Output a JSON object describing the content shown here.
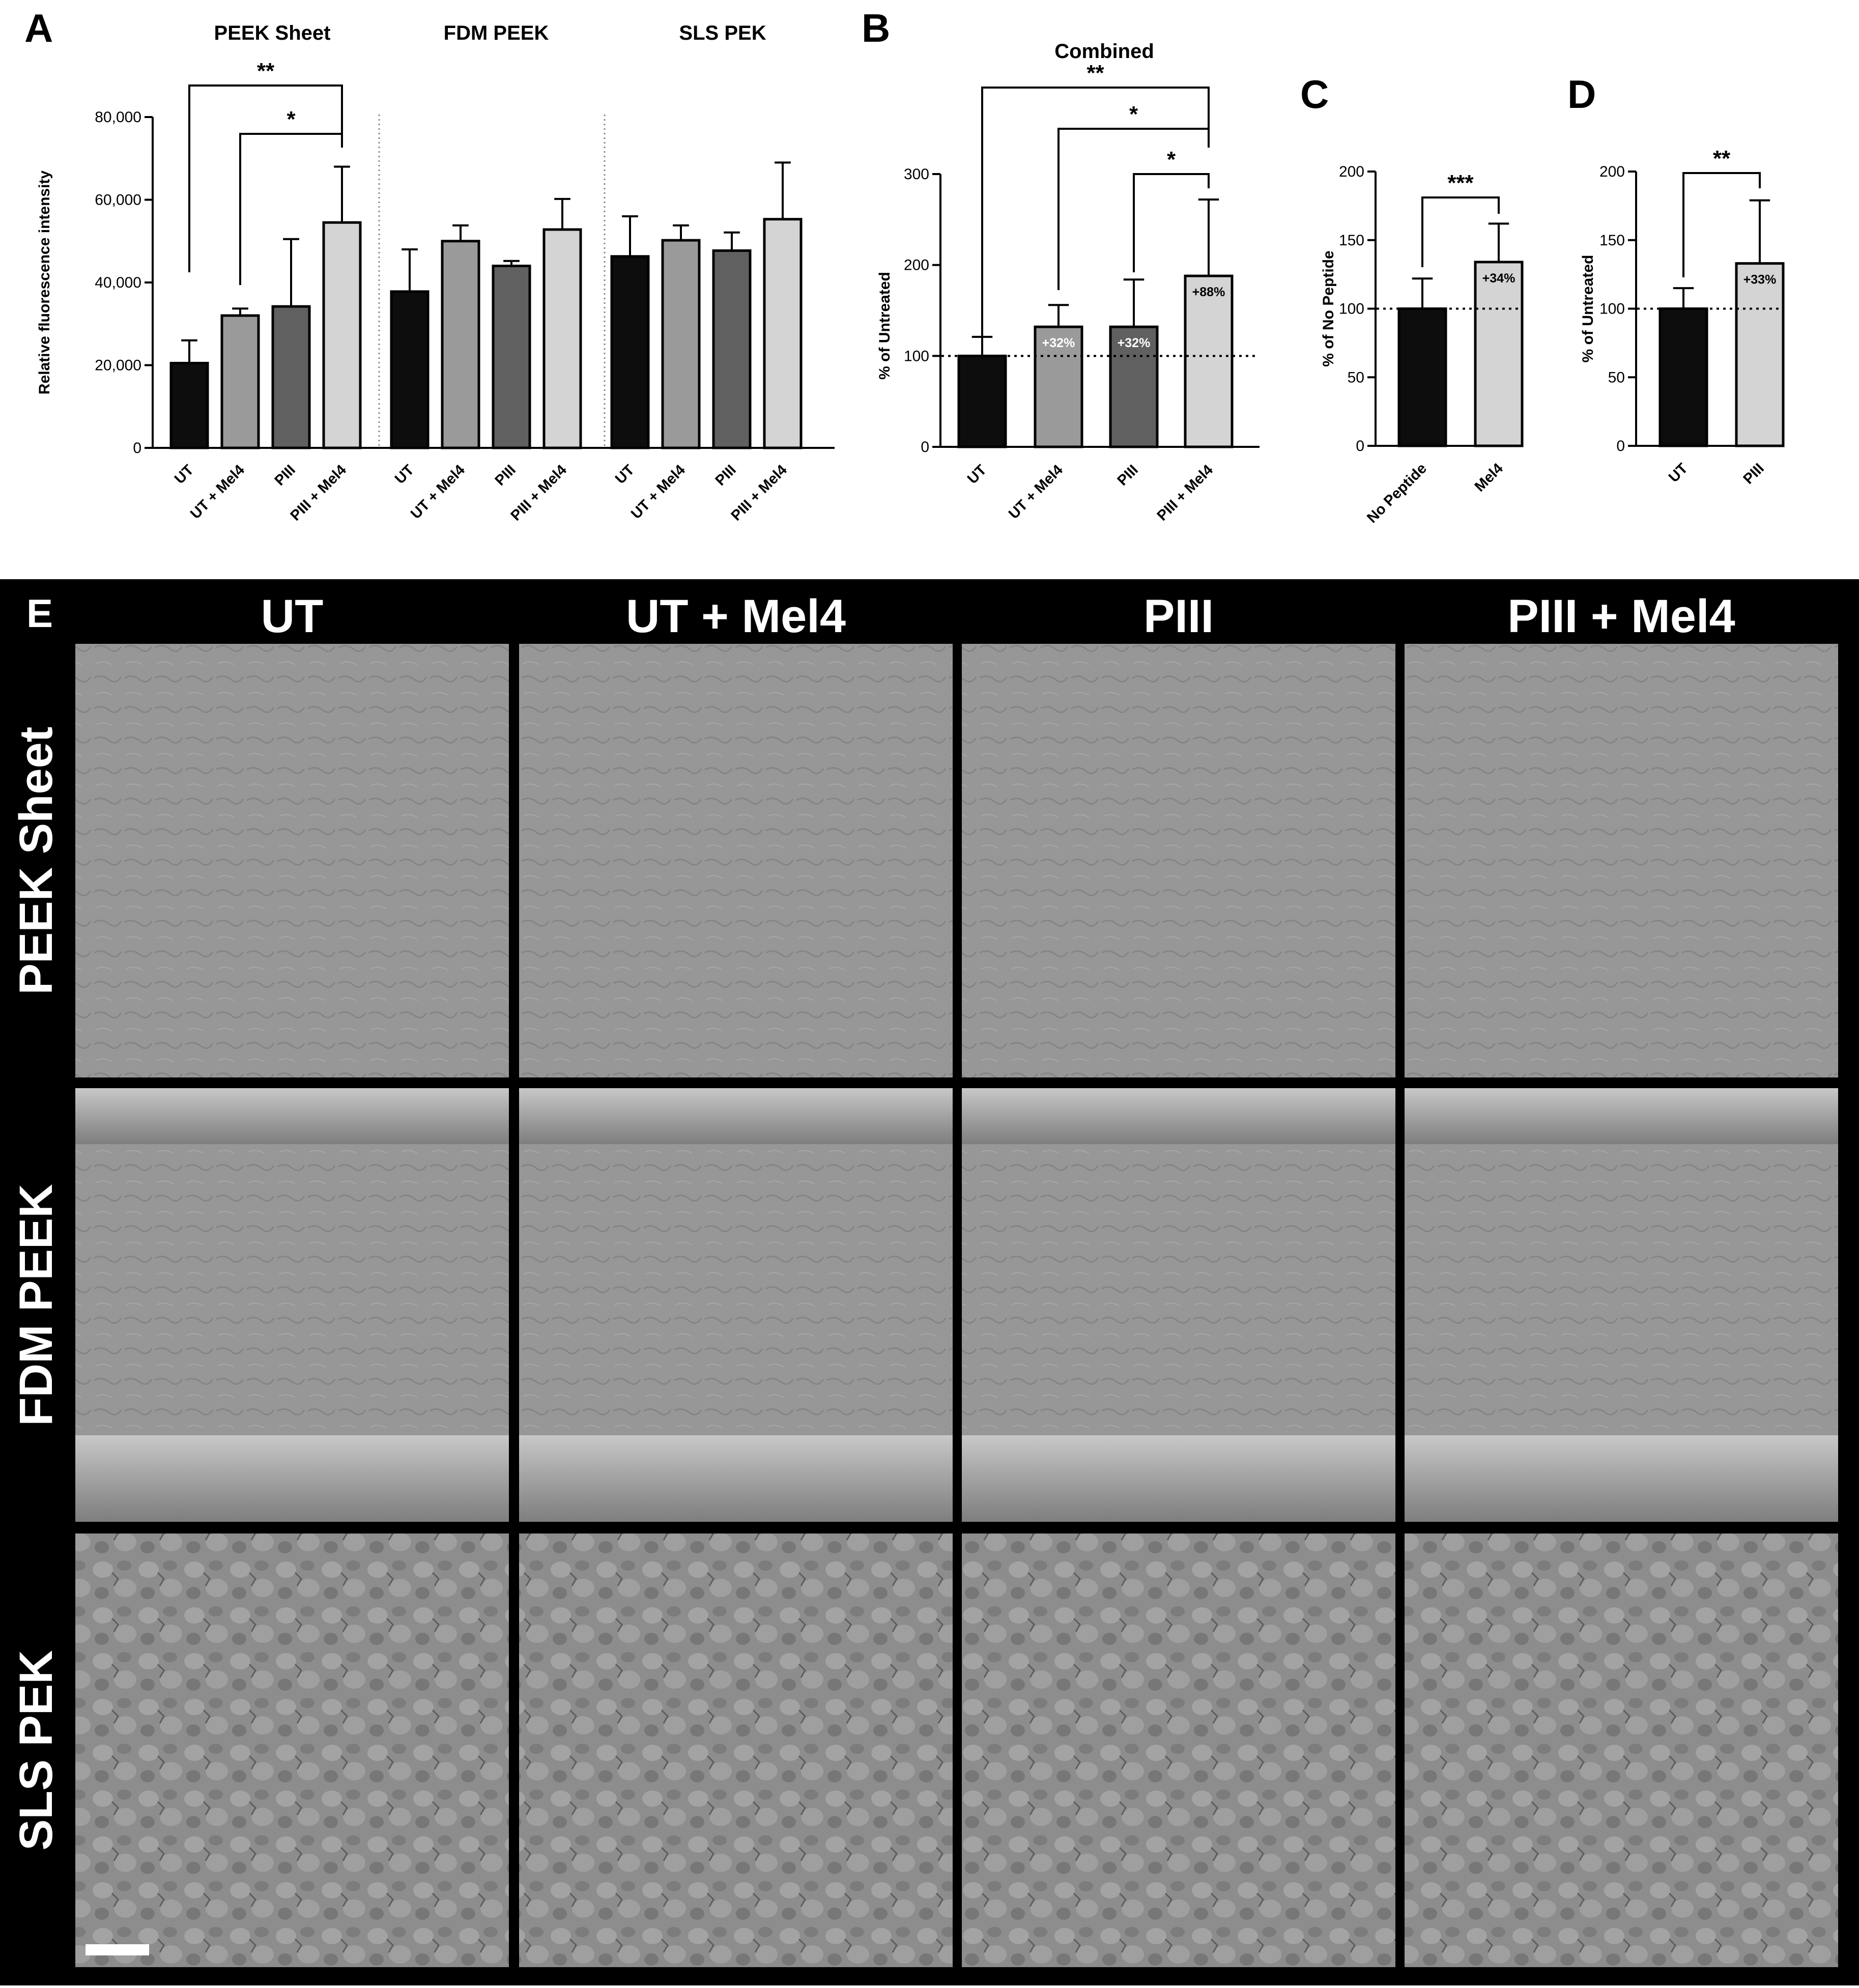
{
  "colors": {
    "ut": "#0d0d0d",
    "ut_mel4": "#9a9a9a",
    "piii": "#606060",
    "piii_mel4": "#d4d4d4",
    "grid_bg": "#000000",
    "sem": "#8f8f8f"
  },
  "chart_data": [
    {
      "panel": "A",
      "type": "bar",
      "ylabel": "Relative fluorescence intensity",
      "ylim": [
        0,
        80000
      ],
      "yticks": [
        "0",
        "20,000",
        "40,000",
        "60,000",
        "80,000"
      ],
      "groups": [
        {
          "title": "PEEK Sheet",
          "categories": [
            "UT",
            "UT + Mel4",
            "PIII",
            "PIII + Mel4"
          ],
          "values": [
            20500,
            32000,
            34200,
            54500
          ],
          "errors": [
            5500,
            1700,
            16300,
            13500
          ]
        },
        {
          "title": "FDM PEEK",
          "categories": [
            "UT",
            "UT + Mel4",
            "PIII",
            "PIII + Mel4"
          ],
          "values": [
            37800,
            50000,
            44000,
            52800
          ],
          "errors": [
            10200,
            3800,
            1200,
            7400
          ]
        },
        {
          "title": "SLS PEK",
          "categories": [
            "UT",
            "UT + Mel4",
            "PIII",
            "PIII + Mel4"
          ],
          "values": [
            46300,
            50200,
            47700,
            55300
          ],
          "errors": [
            9700,
            3600,
            4400,
            13700
          ]
        }
      ],
      "significance": [
        {
          "from": 0,
          "to": 3,
          "label": "**"
        },
        {
          "from": 1,
          "to": 3,
          "label": "*"
        }
      ]
    },
    {
      "panel": "B",
      "type": "bar",
      "title": "Combined",
      "ylabel": "% of Untreated",
      "ylim": [
        0,
        300
      ],
      "yticks": [
        "0",
        "100",
        "200",
        "300"
      ],
      "categories": [
        "UT",
        "UT + Mel4",
        "PIII",
        "PIII + Mel4"
      ],
      "values": [
        100,
        132,
        132,
        188
      ],
      "errors": [
        21,
        24,
        52,
        84
      ],
      "labels": [
        "",
        "+32%",
        "+32%",
        "+88%"
      ],
      "reference": 100,
      "significance": [
        {
          "from": 0,
          "to": 3,
          "label": "**"
        },
        {
          "from": 1,
          "to": 3,
          "label": "*"
        },
        {
          "from": 2,
          "to": 3,
          "label": "*"
        }
      ]
    },
    {
      "panel": "C",
      "type": "bar",
      "ylabel": "% of No Peptide",
      "ylim": [
        0,
        200
      ],
      "yticks": [
        "0",
        "50",
        "100",
        "150",
        "200"
      ],
      "categories": [
        "No Peptide",
        "Mel4"
      ],
      "values": [
        100,
        134
      ],
      "errors": [
        22,
        28
      ],
      "labels": [
        "",
        "+34%"
      ],
      "reference": 100,
      "significance": [
        {
          "from": 0,
          "to": 1,
          "label": "***"
        }
      ]
    },
    {
      "panel": "D",
      "type": "bar",
      "ylabel": "% of Untreated",
      "ylim": [
        0,
        200
      ],
      "yticks": [
        "0",
        "50",
        "100",
        "150",
        "200"
      ],
      "categories": [
        "UT",
        "PIII"
      ],
      "values": [
        100,
        133
      ],
      "errors": [
        15,
        46
      ],
      "labels": [
        "",
        "+33%"
      ],
      "reference": 100,
      "significance": [
        {
          "from": 0,
          "to": 1,
          "label": "**"
        }
      ]
    }
  ],
  "panel_e": {
    "label": "E",
    "columns": [
      "UT",
      "UT + Mel4",
      "PIII",
      "PIII + Mel4"
    ],
    "rows": [
      "PEEK Sheet",
      "FDM PEEK",
      "SLS PEK"
    ],
    "image_captions": [
      "SEM image: PEEK Sheet, UT",
      "SEM image: PEEK Sheet, UT + Mel4",
      "SEM image: PEEK Sheet, PIII",
      "SEM image: PEEK Sheet, PIII + Mel4",
      "SEM image: FDM PEEK, UT",
      "SEM image: FDM PEEK, UT + Mel4",
      "SEM image: FDM PEEK, PIII",
      "SEM image: FDM PEEK, PIII + Mel4",
      "SEM image: SLS PEK, UT",
      "SEM image: SLS PEK, UT + Mel4",
      "SEM image: SLS PEK, PIII",
      "SEM image: SLS PEK, PIII + Mel4"
    ]
  }
}
